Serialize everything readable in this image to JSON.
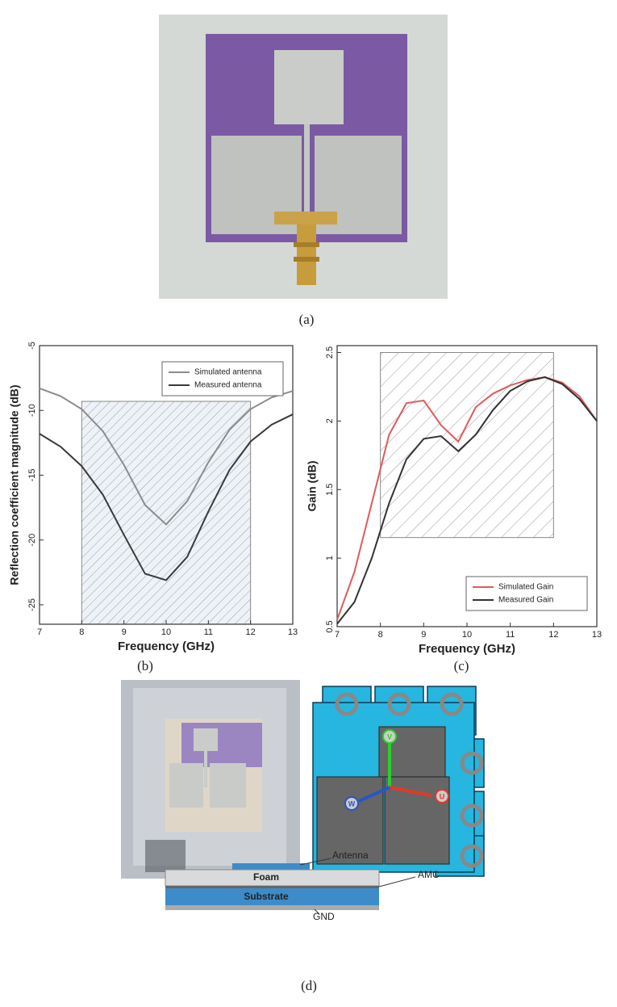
{
  "chart_data": [
    {
      "type": "line",
      "xlabel": "Frequency (GHz)",
      "ylabel": "Reflection coefficient magnitude (dB)",
      "x": [
        7,
        7.5,
        8,
        8.5,
        9,
        9.5,
        10,
        10.5,
        11,
        11.5,
        12,
        12.5,
        13
      ],
      "series": [
        {
          "name": "Simulated antenna",
          "color": "#8c8c8c",
          "values": [
            -8.3,
            -8.9,
            -9.9,
            -11.6,
            -14.2,
            -17.3,
            -18.8,
            -17.0,
            -14.0,
            -11.5,
            -9.9,
            -9.0,
            -8.5
          ]
        },
        {
          "name": "Measured antenna",
          "color": "#3a3a3a",
          "values": [
            -11.8,
            -12.8,
            -14.3,
            -16.5,
            -19.6,
            -22.6,
            -23.1,
            -21.3,
            -17.8,
            -14.6,
            -12.4,
            -11.1,
            -10.3
          ]
        }
      ],
      "xlim": [
        7,
        13
      ],
      "xticks": [
        7,
        8,
        9,
        10,
        11,
        12,
        13
      ],
      "ylim": [
        -26.5,
        -5
      ],
      "yticks": [
        -25,
        -20,
        -15,
        -10,
        -5
      ],
      "shaded_region": {
        "x": [
          8,
          12
        ],
        "y": [
          -26.5,
          -9.3
        ]
      },
      "legend": "upper right"
    },
    {
      "type": "line",
      "xlabel": "Frequency (GHz)",
      "ylabel": "Gain (dB)",
      "x": [
        7,
        7.4,
        7.8,
        8.2,
        8.6,
        9,
        9.4,
        9.8,
        10.2,
        10.6,
        11,
        11.4,
        11.8,
        12.2,
        12.6,
        13
      ],
      "series": [
        {
          "name": "Simulated Gain",
          "color": "#e05a5a",
          "values": [
            0.55,
            0.9,
            1.4,
            1.9,
            2.13,
            2.15,
            1.97,
            1.85,
            2.1,
            2.2,
            2.26,
            2.3,
            2.32,
            2.28,
            2.18,
            2.0
          ]
        },
        {
          "name": "Measured Gain",
          "color": "#333333",
          "values": [
            0.52,
            0.68,
            1.0,
            1.4,
            1.72,
            1.87,
            1.89,
            1.78,
            1.9,
            2.08,
            2.22,
            2.29,
            2.32,
            2.27,
            2.16,
            2.0
          ]
        }
      ],
      "xlim": [
        7,
        13
      ],
      "xticks": [
        7,
        8,
        9,
        10,
        11,
        12,
        13
      ],
      "ylim": [
        0.5,
        2.55
      ],
      "yticks": [
        0.5,
        1,
        1.5,
        2,
        2.5
      ],
      "shaded_region": {
        "x": [
          8,
          12
        ],
        "y": [
          1.15,
          2.5
        ]
      },
      "legend": "lower right"
    }
  ],
  "figure": {
    "panel_labels": [
      "(a)",
      "(b)",
      "(c)",
      "(d)"
    ],
    "model_axes": [
      "V",
      "W",
      "U"
    ],
    "diagram": {
      "antenna": "Antenna",
      "foam": "Foam",
      "amc": "AMC",
      "substrate": "Substrate",
      "gnd": "GND"
    }
  }
}
